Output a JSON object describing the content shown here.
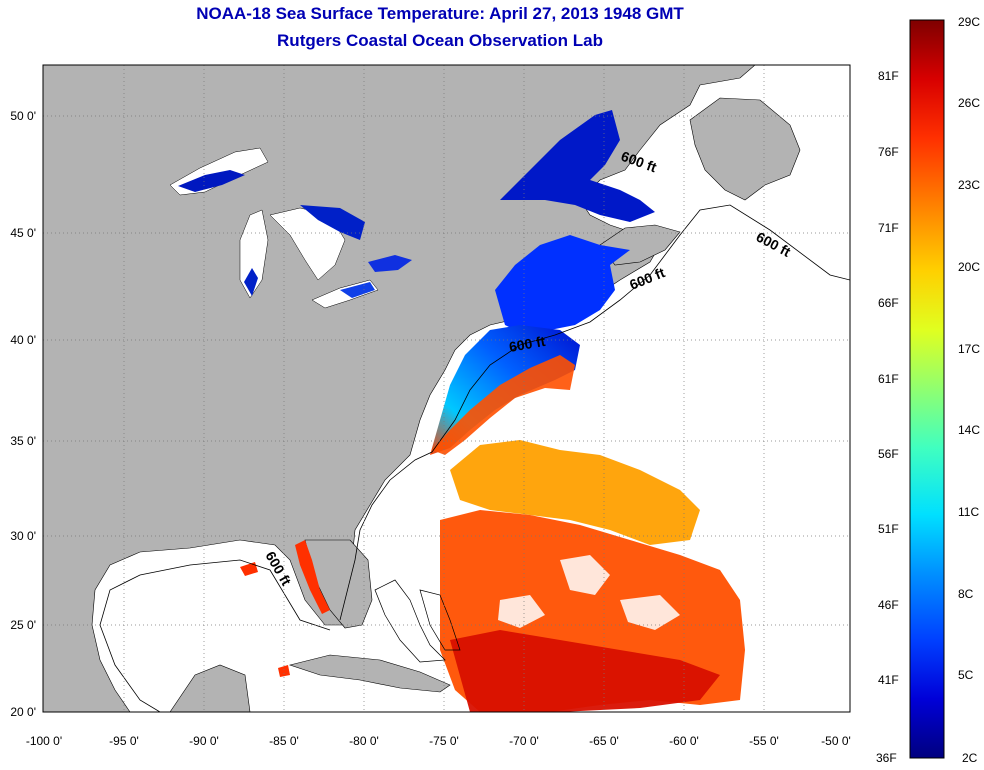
{
  "title": "NOAA-18 Sea Surface Temperature:  April 27, 2013 1948 GMT",
  "subtitle": "Rutgers Coastal Ocean Observation Lab",
  "axes": {
    "lon_ticks": [
      "-100 0'",
      "-95 0'",
      "-90 0'",
      "-85 0'",
      "-80 0'",
      "-75 0'",
      "-70 0'",
      "-65 0'",
      "-60 0'",
      "-55 0'",
      "-50 0'"
    ],
    "lat_ticks": [
      "50 0'",
      "45 0'",
      "40 0'",
      "35 0'",
      "30 0'",
      "25 0'",
      "20 0'"
    ]
  },
  "contour_label": "600 ft",
  "colorbar": {
    "celsius": [
      "29C",
      "26C",
      "23C",
      "20C",
      "17C",
      "14C",
      "11C",
      "8C",
      "5C",
      "2C"
    ],
    "fahrenheit": [
      "81F",
      "76F",
      "71F",
      "66F",
      "61F",
      "56F",
      "51F",
      "46F",
      "41F",
      "36F"
    ],
    "colors": [
      "#00007f",
      "#0000d8",
      "#0040ff",
      "#0090ff",
      "#00e0ff",
      "#40ffc0",
      "#90ff70",
      "#e0ff20",
      "#ffd000",
      "#ff8000",
      "#ff3000",
      "#d80000",
      "#7f0000"
    ]
  },
  "colors": {
    "land": "#b3b3b3",
    "ocean": "#ffffff",
    "title": "#0000b4"
  }
}
